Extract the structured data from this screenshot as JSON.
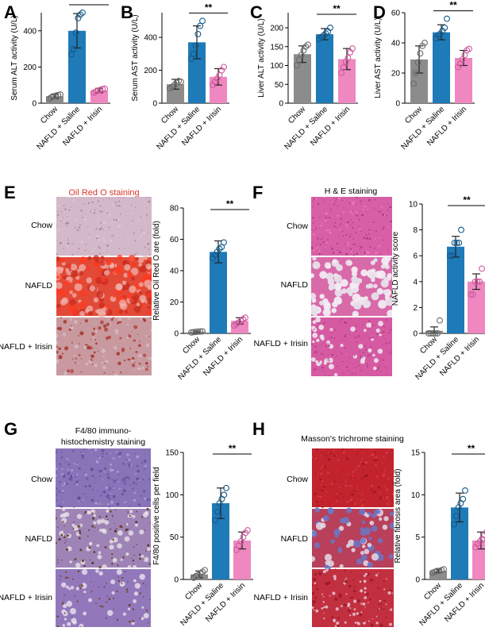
{
  "panel_letters": [
    "A",
    "B",
    "C",
    "D",
    "E",
    "F",
    "G",
    "H"
  ],
  "colors": {
    "chow": "#8c8c8c",
    "nafld_saline": "#1f7ab8",
    "nafld_irisin": "#ef88c0",
    "staining_title_red": "#d8362b",
    "orc_background": "#d2b8c8",
    "orc_droplets": "#e8281e",
    "he_pink": "#d85fa6",
    "he_vacuole": "#e7e0ea",
    "ihc_purple": "#8a74b8",
    "ihc_brown": "#6b3c20",
    "masson_red": "#c2232d",
    "masson_blue": "#6a78c8"
  },
  "staining": {
    "E": {
      "title": "Oil Red O staining",
      "rows": [
        "Chow",
        "NAFLD",
        "NAFLD + Irisin"
      ]
    },
    "F": {
      "title": "H & E staining",
      "rows": [
        "Chow",
        "NAFLD",
        "NAFLD + Irisin"
      ]
    },
    "G": {
      "title": "F4/80 immuno-histochemistry staining",
      "title_lines": [
        "F4/80 immuno-",
        "histochemistry staining"
      ],
      "rows": [
        "Chow",
        "NAFLD",
        "NAFLD + Irisin"
      ]
    },
    "H": {
      "title": "Masson's trichrome staining",
      "rows": [
        "Chow",
        "NAFLD",
        "NAFLD + Irisin"
      ]
    }
  },
  "chart_data": [
    {
      "panel": "A",
      "type": "bar",
      "ylabel": "Serum ALT activity (U/L)",
      "categories": [
        "Chow",
        "NAFLD + Saline",
        "NAFLD + Irisin"
      ],
      "values": [
        38,
        400,
        70
      ],
      "errors": [
        12,
        95,
        12
      ],
      "points": [
        [
          25,
          32,
          38,
          42,
          45,
          48
        ],
        [
          270,
          300,
          390,
          470,
          490,
          500
        ],
        [
          58,
          64,
          70,
          74,
          78,
          80
        ]
      ],
      "ylim": [
        0,
        500
      ],
      "yticks": [
        0,
        200,
        400
      ],
      "significance": "**"
    },
    {
      "panel": "B",
      "type": "bar",
      "ylabel": "Serum AST activity (U/L)",
      "categories": [
        "Chow",
        "NAFLD + Saline",
        "NAFLD + Irisin"
      ],
      "values": [
        115,
        370,
        160
      ],
      "errors": [
        30,
        100,
        50
      ],
      "points": [
        [
          90,
          100,
          110,
          125,
          135,
          130
        ],
        [
          270,
          300,
          350,
          420,
          470,
          500
        ],
        [
          110,
          130,
          150,
          170,
          200,
          220
        ]
      ],
      "ylim": [
        0,
        550
      ],
      "yticks": [
        0,
        200,
        400
      ],
      "significance": "**"
    },
    {
      "panel": "C",
      "type": "bar",
      "ylabel": "Liver ALT activity (U/L)",
      "categories": [
        "Chow",
        "NAFLD + Saline",
        "NAFLD + Irisin"
      ],
      "values": [
        130,
        183,
        117
      ],
      "errors": [
        22,
        15,
        28
      ],
      "points": [
        [
          100,
          115,
          128,
          140,
          150,
          155
        ],
        [
          170,
          175,
          180,
          185,
          190,
          200
        ],
        [
          80,
          95,
          110,
          120,
          135,
          145
        ]
      ],
      "ylim": [
        0,
        240
      ],
      "yticks": [
        0,
        50,
        100,
        150,
        200
      ],
      "significance": "**"
    },
    {
      "panel": "D",
      "type": "bar",
      "ylabel": "Liver AST activity (U/L)",
      "categories": [
        "Chow",
        "NAFLD + Saline",
        "NAFLD + Irisin"
      ],
      "values": [
        29,
        47,
        30
      ],
      "errors": [
        9,
        5,
        5
      ],
      "points": [
        [
          13,
          20,
          27,
          33,
          38,
          40
        ],
        [
          43,
          45,
          46,
          48,
          50,
          56
        ],
        [
          24,
          26,
          29,
          32,
          35,
          36
        ]
      ],
      "ylim": [
        0,
        60
      ],
      "yticks": [
        0,
        20,
        40,
        60
      ],
      "significance": "**"
    },
    {
      "panel": "E",
      "type": "bar",
      "ylabel": "Relative Oil Red O are (fold)",
      "categories": [
        "Chow",
        "NAFLD + Saline",
        "NAFLD + Irisin"
      ],
      "values": [
        1,
        52,
        8
      ],
      "errors": [
        0.5,
        7,
        2
      ],
      "points": [
        [
          0.6,
          0.8,
          1,
          1.1,
          1.2,
          1.3
        ],
        [
          48,
          50,
          52,
          54,
          55,
          58
        ],
        [
          5,
          6,
          7,
          8,
          9,
          10
        ]
      ],
      "ylim": [
        0,
        80
      ],
      "yticks": [
        0,
        20,
        40,
        60,
        80
      ],
      "significance": "**"
    },
    {
      "panel": "F",
      "type": "bar",
      "ylabel": "NAFLD activity score",
      "categories": [
        "Chow",
        "NAFLD + Saline",
        "NAFLD + Irisin"
      ],
      "values": [
        0.2,
        6.7,
        4.0
      ],
      "errors": [
        0.3,
        0.8,
        0.6
      ],
      "points": [
        [
          0,
          0,
          0,
          0,
          0,
          1
        ],
        [
          6,
          6,
          7,
          7,
          7,
          8
        ],
        [
          3,
          3,
          4,
          4,
          4,
          5
        ]
      ],
      "ylim": [
        0,
        10
      ],
      "yticks": [
        0,
        2,
        4,
        6,
        8,
        10
      ],
      "significance": "**"
    },
    {
      "panel": "G",
      "type": "bar",
      "ylabel": "F4/80 positive cells per field",
      "categories": [
        "Chow",
        "NAFLD + Saline",
        "NAFLD + Irisin"
      ],
      "values": [
        6,
        90,
        46
      ],
      "errors": [
        4,
        18,
        10
      ],
      "points": [
        [
          2,
          4,
          5,
          7,
          9,
          11
        ],
        [
          70,
          80,
          90,
          95,
          100,
          108
        ],
        [
          35,
          40,
          45,
          50,
          55,
          58
        ]
      ],
      "ylim": [
        0,
        150
      ],
      "yticks": [
        0,
        50,
        100,
        150
      ],
      "significance": "**"
    },
    {
      "panel": "H",
      "type": "bar",
      "ylabel": "Relative fibrosis area (fold)",
      "categories": [
        "Chow",
        "NAFLD + Saline",
        "NAFLD + Irisin"
      ],
      "values": [
        1,
        8.5,
        4.6
      ],
      "errors": [
        0.2,
        1.7,
        1.0
      ],
      "points": [
        [
          0.8,
          0.9,
          1,
          1,
          1.1,
          1.2
        ],
        [
          6.5,
          7.5,
          8.5,
          9,
          9.5,
          10.5
        ],
        [
          3.8,
          4.2,
          4.5,
          4.8,
          5.2,
          5.6
        ]
      ],
      "ylim": [
        0,
        15
      ],
      "yticks": [
        0,
        5,
        10,
        15
      ],
      "significance": "**"
    }
  ]
}
